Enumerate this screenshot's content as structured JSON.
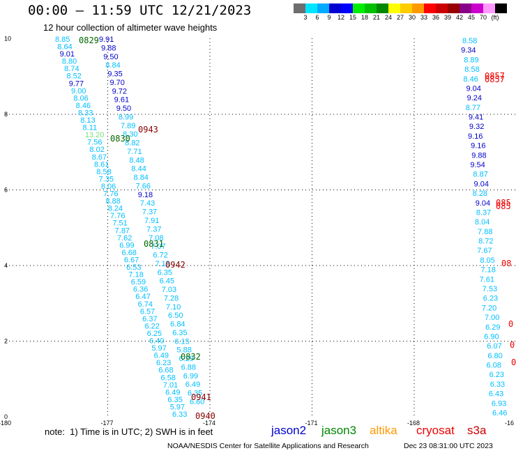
{
  "header": {
    "title": "00:00 – 11:59 UTC 12/21/2023",
    "subtitle": "12 hour collection of altimeter wave heights"
  },
  "colorbar": {
    "colors": [
      "#6e6e6e",
      "#00e5ff",
      "#00aaff",
      "#0000d0",
      "#0000ff",
      "#00ee00",
      "#00c000",
      "#008800",
      "#ffff00",
      "#ffcc00",
      "#ff9900",
      "#ff0000",
      "#cc0000",
      "#990000",
      "#880088",
      "#cc00cc",
      "#ff99ff",
      "#000000"
    ],
    "labels": [
      "3",
      "6",
      "9",
      "12",
      "15",
      "18",
      "21",
      "24",
      "27",
      "30",
      "33",
      "36",
      "39",
      "42",
      "45",
      "70",
      "(ft)"
    ]
  },
  "axes": {
    "x_ticks": [
      "-180",
      "-177",
      "-174",
      "-171",
      "-168",
      "-16"
    ],
    "y_ticks": [
      "0",
      "2",
      "4",
      "6",
      "8",
      "10"
    ]
  },
  "map": {
    "swh_colors": {
      "light": "#00bfff",
      "blue": "#0000cc",
      "green": "#77dd77",
      "pass": "#006600",
      "darkred": "#880000",
      "red": "#ee0000"
    },
    "left_track": [
      {
        "t": "8.85",
        "c": "light"
      },
      {
        "t": "8.64",
        "c": "light"
      },
      {
        "t": "9.01",
        "c": "blue"
      },
      {
        "t": "8.80",
        "c": "light"
      },
      {
        "t": "8.74",
        "c": "light"
      },
      {
        "t": "8.52",
        "c": "light"
      },
      {
        "t": "9.77",
        "c": "blue"
      },
      {
        "t": "9.00",
        "c": "light"
      },
      {
        "t": "8.06",
        "c": "light"
      },
      {
        "t": "8.46",
        "c": "light"
      },
      {
        "t": "8.33",
        "c": "light"
      },
      {
        "t": "8.13",
        "c": "light"
      },
      {
        "t": "8.11",
        "c": "light"
      },
      {
        "t": "13.20",
        "c": "green"
      },
      {
        "t": "7.56",
        "c": "light"
      },
      {
        "t": "8.02",
        "c": "light"
      },
      {
        "t": "8.67",
        "c": "light"
      },
      {
        "t": "8.61",
        "c": "light"
      },
      {
        "t": "8.58",
        "c": "light"
      },
      {
        "t": "7.35",
        "c": "light"
      },
      {
        "t": "8.06",
        "c": "light"
      },
      {
        "t": "7.76",
        "c": "light"
      },
      {
        "t": "8.88",
        "c": "light"
      },
      {
        "t": "8.24",
        "c": "light"
      },
      {
        "t": "7.76",
        "c": "light"
      },
      {
        "t": "7.51",
        "c": "light"
      },
      {
        "t": "7.87",
        "c": "light"
      },
      {
        "t": "7.62",
        "c": "light"
      },
      {
        "t": "6.99",
        "c": "light"
      },
      {
        "t": "6.68",
        "c": "light"
      },
      {
        "t": "6.67",
        "c": "light"
      },
      {
        "t": "6.53",
        "c": "light"
      },
      {
        "t": "7.18",
        "c": "light"
      },
      {
        "t": "6.59",
        "c": "light"
      },
      {
        "t": "6.36",
        "c": "light"
      },
      {
        "t": "6.47",
        "c": "light"
      },
      {
        "t": "6.74",
        "c": "light"
      },
      {
        "t": "6.57",
        "c": "light"
      },
      {
        "t": "6.37",
        "c": "light"
      },
      {
        "t": "6.22",
        "c": "light"
      },
      {
        "t": "6.25",
        "c": "light"
      },
      {
        "t": "6.40",
        "c": "light"
      },
      {
        "t": "5.97",
        "c": "light"
      },
      {
        "t": "6.49",
        "c": "light"
      },
      {
        "t": "6.23",
        "c": "light"
      },
      {
        "t": "6.68",
        "c": "light"
      },
      {
        "t": "6.58",
        "c": "light"
      },
      {
        "t": "7.01",
        "c": "light"
      },
      {
        "t": "6.49",
        "c": "light"
      },
      {
        "t": "6.35",
        "c": "light"
      },
      {
        "t": "5.97",
        "c": "light"
      },
      {
        "t": "6.33",
        "c": "light"
      }
    ],
    "mid_track": [
      {
        "t": "9.91",
        "c": "blue"
      },
      {
        "t": "9.88",
        "c": "blue"
      },
      {
        "t": "9.50",
        "c": "blue"
      },
      {
        "t": "8.84",
        "c": "light"
      },
      {
        "t": "9.35",
        "c": "blue"
      },
      {
        "t": "9.70",
        "c": "blue"
      },
      {
        "t": "9.72",
        "c": "blue"
      },
      {
        "t": "9.61",
        "c": "blue"
      },
      {
        "t": "9.50",
        "c": "blue"
      },
      {
        "t": "8.99",
        "c": "light"
      },
      {
        "t": "7.89",
        "c": "light"
      },
      {
        "t": "8.30",
        "c": "light"
      },
      {
        "t": "8.82",
        "c": "light"
      },
      {
        "t": "7.71",
        "c": "light"
      },
      {
        "t": "8.48",
        "c": "light"
      },
      {
        "t": "8.44",
        "c": "light"
      },
      {
        "t": "8.84",
        "c": "light"
      },
      {
        "t": "7.66",
        "c": "light"
      },
      {
        "t": "9.18",
        "c": "blue"
      },
      {
        "t": "7.43",
        "c": "light"
      },
      {
        "t": "7.37",
        "c": "light"
      },
      {
        "t": "7.91",
        "c": "light"
      },
      {
        "t": "7.37",
        "c": "light"
      },
      {
        "t": "7.08",
        "c": "light"
      },
      {
        "t": "7.07",
        "c": "light"
      },
      {
        "t": "6.72",
        "c": "light"
      },
      {
        "t": "7.15",
        "c": "light"
      },
      {
        "t": "6.35",
        "c": "light"
      },
      {
        "t": "6.45",
        "c": "light"
      },
      {
        "t": "7.03",
        "c": "light"
      },
      {
        "t": "7.28",
        "c": "light"
      },
      {
        "t": "7.10",
        "c": "light"
      },
      {
        "t": "6.50",
        "c": "light"
      },
      {
        "t": "6.84",
        "c": "light"
      },
      {
        "t": "6.35",
        "c": "light"
      },
      {
        "t": "6.15",
        "c": "light"
      },
      {
        "t": "5.88",
        "c": "light"
      },
      {
        "t": "6.29",
        "c": "light"
      },
      {
        "t": "6.88",
        "c": "light"
      },
      {
        "t": "6.99",
        "c": "light"
      },
      {
        "t": "6.49",
        "c": "light"
      },
      {
        "t": "6.35",
        "c": "light"
      },
      {
        "t": "6.60",
        "c": "light"
      }
    ],
    "right_track": [
      {
        "t": "8.58",
        "c": "light"
      },
      {
        "t": "9.34",
        "c": "blue"
      },
      {
        "t": "8.89",
        "c": "light"
      },
      {
        "t": "8.58",
        "c": "light"
      },
      {
        "t": "8.46",
        "c": "light"
      },
      {
        "t": "9.04",
        "c": "blue"
      },
      {
        "t": "9.24",
        "c": "blue"
      },
      {
        "t": "8.77",
        "c": "light"
      },
      {
        "t": "9.41",
        "c": "blue"
      },
      {
        "t": "9.32",
        "c": "blue"
      },
      {
        "t": "9.16",
        "c": "blue"
      },
      {
        "t": "9.16",
        "c": "blue"
      },
      {
        "t": "9.88",
        "c": "blue"
      },
      {
        "t": "9.54",
        "c": "blue"
      },
      {
        "t": "8.87",
        "c": "light"
      },
      {
        "t": "9.04",
        "c": "blue"
      },
      {
        "t": "8.28",
        "c": "light"
      },
      {
        "t": "9.04",
        "c": "blue"
      },
      {
        "t": "8.37",
        "c": "light"
      },
      {
        "t": "8.04",
        "c": "light"
      },
      {
        "t": "7.88",
        "c": "light"
      },
      {
        "t": "8.72",
        "c": "light"
      },
      {
        "t": "7.67",
        "c": "light"
      },
      {
        "t": "8.05",
        "c": "light"
      },
      {
        "t": "7.18",
        "c": "light"
      },
      {
        "t": "7.61",
        "c": "light"
      },
      {
        "t": "7.53",
        "c": "light"
      },
      {
        "t": "6.23",
        "c": "light"
      },
      {
        "t": "7.20",
        "c": "light"
      },
      {
        "t": "7.00",
        "c": "light"
      },
      {
        "t": "6.29",
        "c": "light"
      },
      {
        "t": "6.90",
        "c": "light"
      },
      {
        "t": "6.07",
        "c": "light"
      },
      {
        "t": "6.80",
        "c": "light"
      },
      {
        "t": "6.08",
        "c": "light"
      },
      {
        "t": "6.23",
        "c": "light"
      },
      {
        "t": "6.33",
        "c": "light"
      },
      {
        "t": "6.43",
        "c": "light"
      },
      {
        "t": "6.93",
        "c": "light"
      },
      {
        "t": "6.46",
        "c": "light"
      }
    ],
    "pass_labels": [
      {
        "t": "0829",
        "c": "pass"
      },
      {
        "t": "0830",
        "c": "pass"
      },
      {
        "t": "0831",
        "c": "pass"
      },
      {
        "t": "0832",
        "c": "pass"
      },
      {
        "t": "0943",
        "c": "darkred"
      },
      {
        "t": "0942",
        "c": "darkred"
      },
      {
        "t": "0941",
        "c": "darkred"
      },
      {
        "t": "0940",
        "c": "darkred"
      },
      {
        "t": "0857",
        "c": "red"
      },
      {
        "t": "0857",
        "c": "red"
      },
      {
        "t": "085",
        "c": "red"
      },
      {
        "t": "085",
        "c": "red"
      },
      {
        "t": "08",
        "c": "red"
      },
      {
        "t": "0",
        "c": "red"
      },
      {
        "t": "0",
        "c": "red"
      },
      {
        "t": "0",
        "c": "red"
      }
    ]
  },
  "legend": {
    "note": "note:  1) Time is in UTC; 2) SWH is in feet",
    "satellites": [
      {
        "name": "jason2",
        "color": "#0000cc"
      },
      {
        "name": "jason3",
        "color": "#008800"
      },
      {
        "name": "altika",
        "color": "#ff9900"
      },
      {
        "name": "cryosat",
        "color": "#ee0000"
      },
      {
        "name": "s3a",
        "color": "#cc0000"
      }
    ]
  },
  "footer": {
    "credit": "NOAA/NESDIS Center for Satellite Applications and Research",
    "timestamp": "Dec 23 08:31:00 UTC 2023"
  }
}
